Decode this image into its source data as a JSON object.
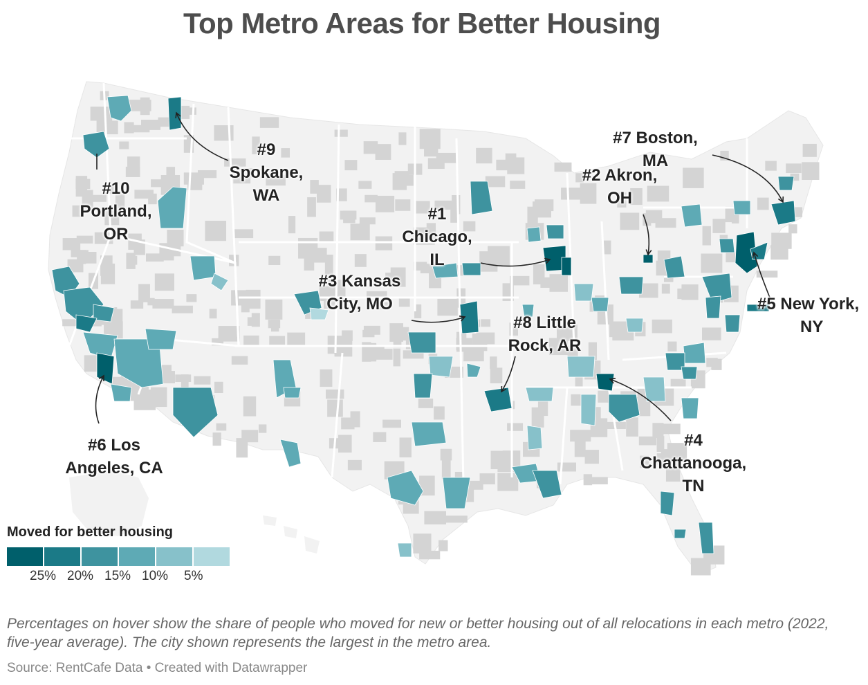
{
  "title": "Top Metro Areas for Better Housing",
  "labels": {
    "spokane": [
      "#9",
      "Spokane,",
      "WA"
    ],
    "portland": [
      "#10",
      "Portland,",
      "OR"
    ],
    "chicago": [
      "#1",
      "Chicago,",
      "IL"
    ],
    "kansas": [
      "#3 Kansas",
      "City, MO"
    ],
    "little_rock": [
      "#8 Little",
      "Rock, AR"
    ],
    "boston": [
      "#7 Boston,",
      "MA"
    ],
    "akron": [
      "#2 Akron,",
      "OH"
    ],
    "new_york": [
      "#5 New York,",
      "NY"
    ],
    "chattanooga": [
      "#4",
      "Chattanooga,",
      "TN"
    ],
    "los_angeles": [
      "#6 Los",
      "Angeles, CA"
    ]
  },
  "legend": {
    "title": "Moved for better housing",
    "colors": [
      "#005f6b",
      "#1b7a87",
      "#3e939f",
      "#5eaab5",
      "#87c1ca",
      "#b1d9df"
    ],
    "ticks": [
      "25%",
      "20%",
      "15%",
      "10%",
      "5%"
    ]
  },
  "note": "Percentages on hover show the share of people who moved for new or better housing out of all relocations in each metro (2022, five-year average). The city shown represents the largest in the metro area.",
  "source": "Source: RentCafe Data • Created with Datawrapper",
  "map_colors": {
    "land": "#f2f2f2",
    "county_gray": "#d4d4d4",
    "state_border": "#ffffff"
  }
}
